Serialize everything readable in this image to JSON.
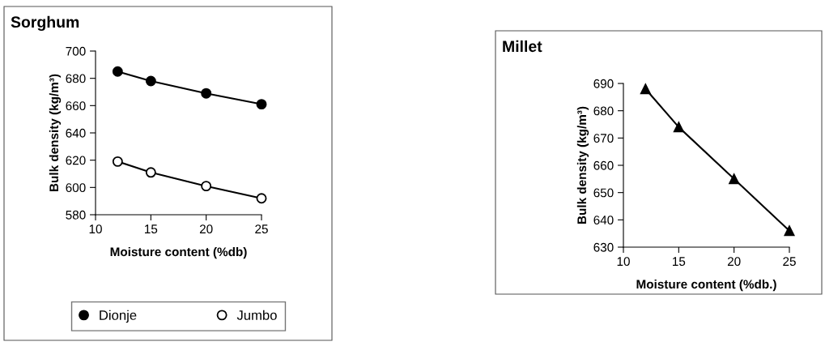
{
  "chart_data": [
    {
      "type": "line",
      "title": "Sorghum",
      "xlabel": "Moisture content (%db)",
      "ylabel": "Bulk density (kg/m³)",
      "x": [
        12,
        15,
        20,
        25
      ],
      "xlim": [
        10,
        25
      ],
      "xticks": [
        10,
        15,
        20,
        25
      ],
      "ylim": [
        580,
        700
      ],
      "yticks": [
        580,
        600,
        620,
        640,
        660,
        680,
        700
      ],
      "grid": false,
      "legend": "bottom",
      "line_style": "solid",
      "series": [
        {
          "name": "Dionje",
          "color": "#000000",
          "marker": "circle",
          "values": [
            685,
            678,
            669,
            661
          ]
        },
        {
          "name": "Jumbo",
          "color": "#000000",
          "marker": "open circle",
          "values": [
            619,
            611,
            601,
            592
          ]
        }
      ]
    },
    {
      "type": "line",
      "title": "Millet",
      "xlabel": "Moisture content (%db.)",
      "ylabel": "Bulk density (kg/m³)",
      "x": [
        12,
        15,
        20,
        25
      ],
      "xlim": [
        10,
        25
      ],
      "xticks": [
        10,
        15,
        20,
        25
      ],
      "ylim": [
        630,
        690
      ],
      "yticks": [
        630,
        640,
        650,
        660,
        670,
        680,
        690
      ],
      "grid": false,
      "legend": false,
      "line_style": "solid",
      "series": [
        {
          "color": "#000000",
          "marker": "triangle",
          "values": [
            688,
            674,
            655,
            636
          ]
        }
      ]
    }
  ]
}
